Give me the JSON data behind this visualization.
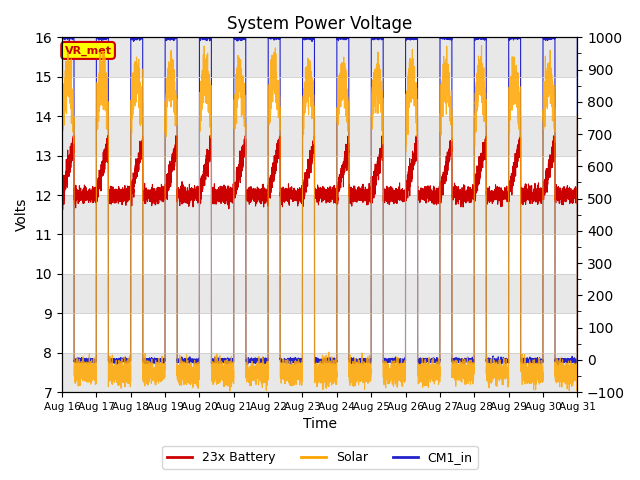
{
  "title": "System Power Voltage",
  "xlabel": "Time",
  "ylabel_left": "Volts",
  "ylim_left": [
    7.0,
    16.0
  ],
  "ylim_right": [
    -100,
    1000
  ],
  "xtick_labels": [
    "Aug 16",
    "Aug 17",
    "Aug 18",
    "Aug 19",
    "Aug 20",
    "Aug 21",
    "Aug 22",
    "Aug 23",
    "Aug 24",
    "Aug 25",
    "Aug 26",
    "Aug 27",
    "Aug 28",
    "Aug 29",
    "Aug 30",
    "Aug 31"
  ],
  "yticks_left": [
    7.0,
    8.0,
    9.0,
    10.0,
    11.0,
    12.0,
    13.0,
    14.0,
    15.0,
    16.0
  ],
  "yticks_right": [
    -100,
    0,
    100,
    200,
    300,
    400,
    500,
    600,
    700,
    800,
    900,
    1000
  ],
  "color_battery": "#cc0000",
  "color_solar": "#ffa500",
  "color_cm1": "#2222cc",
  "legend_label_battery": "23x Battery",
  "legend_label_solar": "Solar",
  "legend_label_cm1": "CM1_in",
  "annotation_text": "VR_met",
  "annotation_bg": "#ffff00",
  "annotation_border": "#cc0000",
  "bg_color": "#ffffff",
  "grid_color": "#cccccc",
  "n_days": 15,
  "cm1_high": 16.0,
  "cm1_low": 7.8,
  "figsize": [
    6.4,
    4.8
  ],
  "dpi": 100
}
